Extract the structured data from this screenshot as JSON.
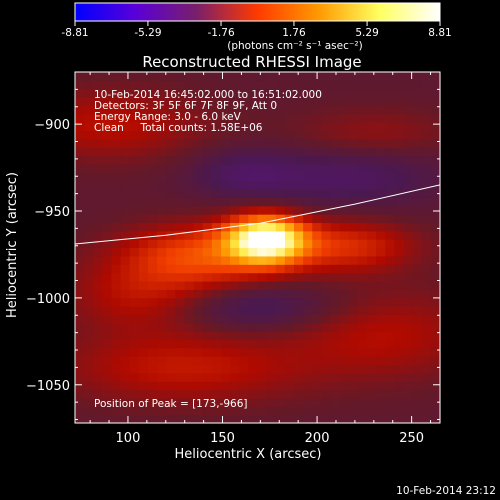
{
  "colorbar": {
    "ticks": [
      "-8.81",
      "-5.29",
      "-1.76",
      "1.76",
      "5.29",
      "8.81"
    ],
    "tick_values": [
      -8.81,
      -5.29,
      -1.76,
      1.76,
      5.29,
      8.81
    ],
    "unit_label": "(photons cm⁻² s⁻¹ asec⁻²)",
    "colors": [
      "#0000ff",
      "#5a00d8",
      "#7a1f6a",
      "#ff3a00",
      "#ff9900",
      "#ffff60",
      "#ffffff"
    ]
  },
  "footer_timestamp": "10-Feb-2014 23:12",
  "chart_data": {
    "type": "heatmap",
    "title": "Reconstructed RHESSI Image",
    "xlabel": "Heliocentric X (arcsec)",
    "ylabel": "Heliocentric Y (arcsec)",
    "xlim": [
      72,
      265
    ],
    "ylim": [
      -1072,
      -870
    ],
    "x_ticks": [
      100,
      150,
      200,
      250
    ],
    "y_ticks": [
      -900,
      -950,
      -1000,
      -1050
    ],
    "x_tick_labels": [
      "100",
      "150",
      "200",
      "250"
    ],
    "y_tick_labels": [
      "−900",
      "−950",
      "−1000",
      "−1050"
    ],
    "info_lines": [
      "10-Feb-2014 16:45:02.000 to 16:51:02.000",
      "Detectors: 3F 5F 6F 7F 8F 9F, Att 0",
      "Energy Range: 3.0 - 6.0 keV",
      "Clean     Total counts: 1.58E+06"
    ],
    "peak_text": "Position of Peak = [173,-966]",
    "peak": [
      173,
      -966
    ],
    "limb_points": [
      [
        72,
        -969
      ],
      [
        120,
        -964
      ],
      [
        170,
        -957
      ],
      [
        220,
        -946
      ],
      [
        265,
        -935
      ]
    ],
    "sources": [
      {
        "x": 173,
        "y": -966,
        "sx": 14,
        "sy": 9,
        "amp": 8.81
      },
      {
        "x": 140,
        "y": -975,
        "sx": 30,
        "sy": 12,
        "amp": 3.2
      },
      {
        "x": 215,
        "y": -970,
        "sx": 25,
        "sy": 10,
        "amp": 2.4
      },
      {
        "x": 110,
        "y": -1000,
        "sx": 28,
        "sy": 14,
        "amp": 2.0
      },
      {
        "x": 130,
        "y": -1040,
        "sx": 45,
        "sy": 14,
        "amp": 1.8
      },
      {
        "x": 235,
        "y": -1020,
        "sx": 35,
        "sy": 18,
        "amp": 1.5
      },
      {
        "x": 90,
        "y": -900,
        "sx": 35,
        "sy": 14,
        "amp": 1.6
      },
      {
        "x": 230,
        "y": -905,
        "sx": 30,
        "sy": 10,
        "amp": 0.9
      },
      {
        "x": 160,
        "y": -1005,
        "sx": 40,
        "sy": 10,
        "amp": -1.4
      },
      {
        "x": 215,
        "y": -930,
        "sx": 35,
        "sy": 12,
        "amp": -1.2
      },
      {
        "x": 160,
        "y": -928,
        "sx": 20,
        "sy": 10,
        "amp": -1.0
      }
    ]
  }
}
